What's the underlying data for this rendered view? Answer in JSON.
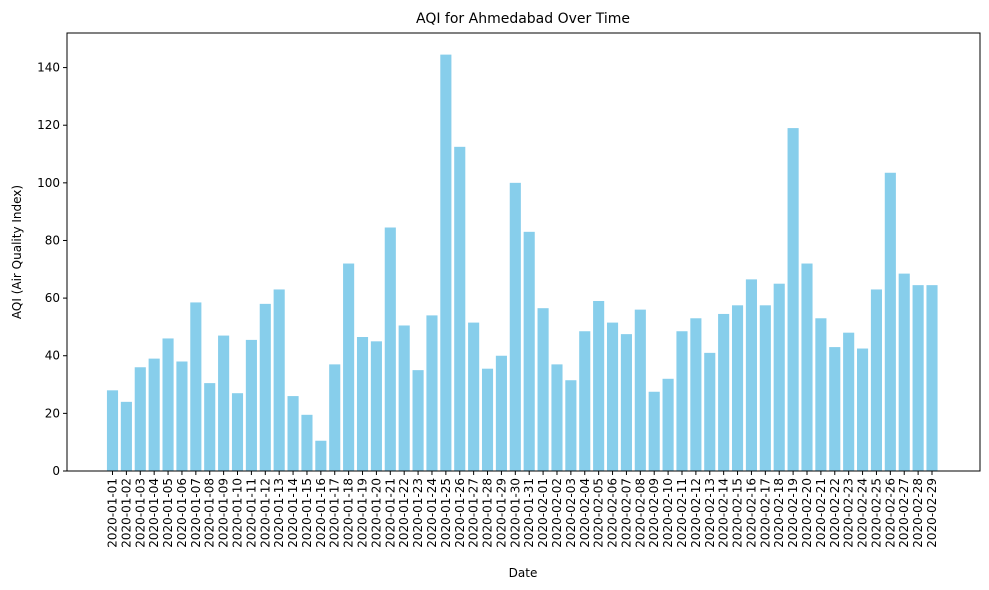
{
  "chart_data": {
    "type": "bar",
    "title": "AQI for Ahmedabad Over Time",
    "xlabel": "Date",
    "ylabel": "AQI (Air Quality Index)",
    "ylim": [
      0,
      152
    ],
    "yticks": [
      0,
      20,
      40,
      60,
      80,
      100,
      120,
      140
    ],
    "grid": false,
    "bar_color": "#87ceeb",
    "categories": [
      "2020-01-01",
      "2020-01-02",
      "2020-01-03",
      "2020-01-04",
      "2020-01-05",
      "2020-01-06",
      "2020-01-07",
      "2020-01-08",
      "2020-01-09",
      "2020-01-10",
      "2020-01-11",
      "2020-01-12",
      "2020-01-13",
      "2020-01-14",
      "2020-01-15",
      "2020-01-16",
      "2020-01-17",
      "2020-01-18",
      "2020-01-19",
      "2020-01-20",
      "2020-01-21",
      "2020-01-22",
      "2020-01-23",
      "2020-01-24",
      "2020-01-25",
      "2020-01-26",
      "2020-01-27",
      "2020-01-28",
      "2020-01-29",
      "2020-01-30",
      "2020-01-31",
      "2020-02-01",
      "2020-02-02",
      "2020-02-03",
      "2020-02-04",
      "2020-02-05",
      "2020-02-06",
      "2020-02-07",
      "2020-02-08",
      "2020-02-09",
      "2020-02-10",
      "2020-02-11",
      "2020-02-12",
      "2020-02-13",
      "2020-02-14",
      "2020-02-15",
      "2020-02-16",
      "2020-02-17",
      "2020-02-18",
      "2020-02-19",
      "2020-02-20",
      "2020-02-21",
      "2020-02-22",
      "2020-02-23",
      "2020-02-24",
      "2020-02-25",
      "2020-02-26",
      "2020-02-27",
      "2020-02-28",
      "2020-02-29"
    ],
    "values": [
      28,
      24,
      36,
      39,
      46,
      38,
      58.5,
      30.5,
      47,
      27,
      45.5,
      58,
      63,
      26,
      19.5,
      10.5,
      37,
      72,
      46.5,
      45,
      84.5,
      50.5,
      35,
      54,
      144.5,
      112.5,
      51.5,
      35.5,
      40,
      100,
      83,
      56.5,
      37,
      31.5,
      48.5,
      59,
      51.5,
      47.5,
      56,
      27.5,
      32,
      48.5,
      53,
      41,
      54.5,
      57.5,
      66.5,
      57.5,
      65,
      119,
      72,
      53,
      43,
      48,
      42.5,
      63,
      103.5,
      68.5,
      64.5,
      64.5
    ]
  }
}
